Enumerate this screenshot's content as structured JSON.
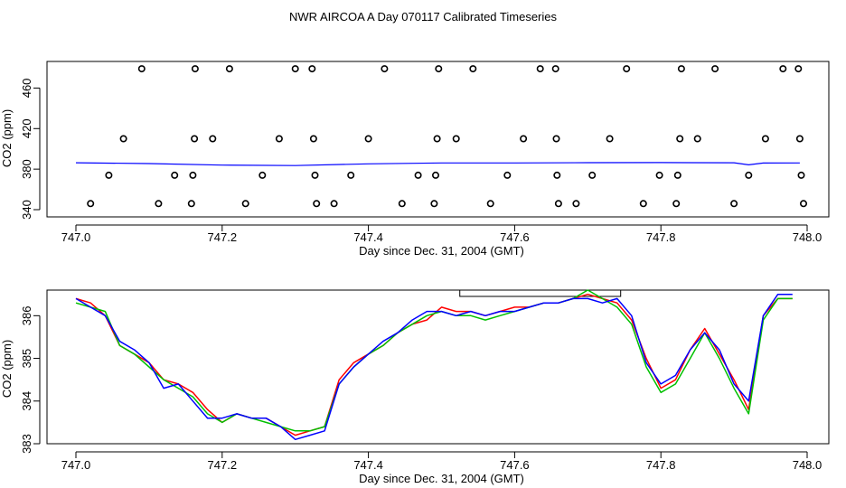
{
  "page_title": "NWR AIRCOA A  Day 070117  Calibrated Timeseries",
  "chart_data": [
    {
      "type": "scatter",
      "xlabel": "Day since Dec. 31, 2004 (GMT)",
      "ylabel": "CO2 (ppm)",
      "xlim": [
        747.0,
        748.0
      ],
      "ylim": [
        340,
        480
      ],
      "x_ticks": [
        747.0,
        747.2,
        747.4,
        747.6,
        747.8,
        748.0
      ],
      "x_tick_labels": [
        "747.0",
        "747.2",
        "747.4",
        "747.6",
        "747.8",
        "748.0"
      ],
      "y_ticks": [
        340,
        380,
        420,
        460
      ],
      "y_tick_labels": [
        "340",
        "380",
        "420",
        "460"
      ],
      "grid": false,
      "points": [
        [
          747.02,
          346
        ],
        [
          747.045,
          374
        ],
        [
          747.065,
          410
        ],
        [
          747.09,
          479
        ],
        [
          747.113,
          346
        ],
        [
          747.135,
          374
        ],
        [
          747.158,
          346
        ],
        [
          747.16,
          374
        ],
        [
          747.162,
          410
        ],
        [
          747.163,
          479
        ],
        [
          747.187,
          410
        ],
        [
          747.21,
          479
        ],
        [
          747.232,
          346
        ],
        [
          747.255,
          374
        ],
        [
          747.278,
          410
        ],
        [
          747.3,
          479
        ],
        [
          747.323,
          479
        ],
        [
          747.325,
          410
        ],
        [
          747.327,
          374
        ],
        [
          747.329,
          346
        ],
        [
          747.353,
          346
        ],
        [
          747.376,
          374
        ],
        [
          747.4,
          410
        ],
        [
          747.422,
          479
        ],
        [
          747.446,
          346
        ],
        [
          747.468,
          374
        ],
        [
          747.49,
          346
        ],
        [
          747.492,
          374
        ],
        [
          747.494,
          410
        ],
        [
          747.496,
          479
        ],
        [
          747.52,
          410
        ],
        [
          747.543,
          479
        ],
        [
          747.567,
          346
        ],
        [
          747.59,
          374
        ],
        [
          747.612,
          410
        ],
        [
          747.635,
          479
        ],
        [
          747.656,
          479
        ],
        [
          747.657,
          410
        ],
        [
          747.658,
          374
        ],
        [
          747.66,
          346
        ],
        [
          747.684,
          346
        ],
        [
          747.706,
          374
        ],
        [
          747.73,
          410
        ],
        [
          747.753,
          479
        ],
        [
          747.776,
          346
        ],
        [
          747.798,
          374
        ],
        [
          747.821,
          346
        ],
        [
          747.823,
          374
        ],
        [
          747.826,
          410
        ],
        [
          747.828,
          479
        ],
        [
          747.85,
          410
        ],
        [
          747.874,
          479
        ],
        [
          747.9,
          346
        ],
        [
          747.92,
          374
        ],
        [
          747.943,
          410
        ],
        [
          747.967,
          479
        ],
        [
          747.988,
          479
        ],
        [
          747.99,
          410
        ],
        [
          747.992,
          374
        ],
        [
          747.995,
          346
        ]
      ],
      "series": [
        {
          "color": "#0000ff",
          "x": [
            747.0,
            747.1,
            747.2,
            747.3,
            747.4,
            747.5,
            747.6,
            747.7,
            747.8,
            747.9,
            747.92,
            747.94,
            747.99
          ],
          "values": [
            386.3,
            385.5,
            384.0,
            383.5,
            385.2,
            386.1,
            386.1,
            386.4,
            386.5,
            386.3,
            384.2,
            386.0,
            386.1
          ]
        }
      ]
    },
    {
      "type": "line",
      "xlabel": "Day since Dec. 31, 2004 (GMT)",
      "ylabel": "CO2 (ppm)",
      "xlim": [
        747.0,
        748.0
      ],
      "ylim": [
        383,
        386.6
      ],
      "x_ticks": [
        747.0,
        747.2,
        747.4,
        747.6,
        747.8,
        748.0
      ],
      "x_tick_labels": [
        "747.0",
        "747.2",
        "747.4",
        "747.6",
        "747.8",
        "748.0"
      ],
      "y_ticks": [
        383,
        384,
        385,
        386
      ],
      "y_tick_labels": [
        "383",
        "384",
        "385",
        "386"
      ],
      "grid": false,
      "bracket": [
        747.525,
        747.745
      ],
      "x": [
        747.0,
        747.02,
        747.04,
        747.06,
        747.08,
        747.1,
        747.12,
        747.14,
        747.16,
        747.18,
        747.2,
        747.22,
        747.24,
        747.26,
        747.28,
        747.3,
        747.32,
        747.34,
        747.36,
        747.38,
        747.4,
        747.42,
        747.44,
        747.46,
        747.48,
        747.5,
        747.52,
        747.54,
        747.56,
        747.58,
        747.6,
        747.62,
        747.64,
        747.66,
        747.68,
        747.7,
        747.72,
        747.74,
        747.76,
        747.78,
        747.8,
        747.82,
        747.84,
        747.86,
        747.88,
        747.9,
        747.92,
        747.94,
        747.96,
        747.98
      ],
      "series": [
        {
          "color": "#ff0000",
          "values": [
            386.4,
            386.3,
            386.0,
            385.3,
            385.1,
            384.9,
            384.5,
            384.4,
            384.2,
            383.8,
            383.5,
            383.7,
            383.6,
            383.6,
            383.4,
            383.2,
            383.3,
            383.4,
            384.5,
            384.9,
            385.1,
            385.3,
            385.6,
            385.8,
            385.9,
            386.2,
            386.1,
            386.1,
            386.0,
            386.1,
            386.2,
            386.2,
            386.3,
            386.3,
            386.4,
            386.5,
            386.4,
            386.3,
            385.9,
            385.0,
            384.3,
            384.5,
            385.2,
            385.7,
            385.1,
            384.5,
            383.8,
            386.0,
            386.4,
            386.4
          ]
        },
        {
          "color": "#00c000",
          "values": [
            386.3,
            386.2,
            386.1,
            385.3,
            385.1,
            384.8,
            384.5,
            384.3,
            384.1,
            383.7,
            383.5,
            383.7,
            383.6,
            383.5,
            383.4,
            383.3,
            383.3,
            383.4,
            384.4,
            384.8,
            385.1,
            385.3,
            385.6,
            385.8,
            386.0,
            386.1,
            386.0,
            386.0,
            385.9,
            386.0,
            386.1,
            386.2,
            386.3,
            386.3,
            386.4,
            386.6,
            386.4,
            386.2,
            385.8,
            384.8,
            384.2,
            384.4,
            385.0,
            385.6,
            385.0,
            384.3,
            383.7,
            385.9,
            386.4,
            386.4
          ]
        },
        {
          "color": "#0000ff",
          "values": [
            386.4,
            386.2,
            386.0,
            385.4,
            385.2,
            384.9,
            384.3,
            384.4,
            384.0,
            383.6,
            383.6,
            383.7,
            383.6,
            383.6,
            383.4,
            383.1,
            383.2,
            383.3,
            384.4,
            384.8,
            385.1,
            385.4,
            385.6,
            385.9,
            386.1,
            386.1,
            386.0,
            386.1,
            386.0,
            386.1,
            386.1,
            386.2,
            386.3,
            386.3,
            386.4,
            386.4,
            386.3,
            386.4,
            386.0,
            384.9,
            384.4,
            384.6,
            385.2,
            385.6,
            385.2,
            384.4,
            384.0,
            386.0,
            386.5,
            386.5
          ]
        }
      ]
    }
  ]
}
